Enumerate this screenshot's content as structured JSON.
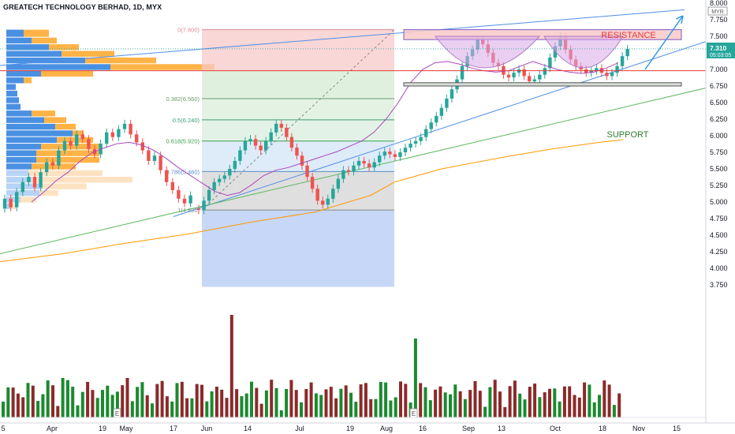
{
  "header": {
    "title": "GREATECH TECHNOLOGY BERHAD, 1D, MYX",
    "currency": "MYR"
  },
  "price_tag": {
    "price": "7.310",
    "countdown": "05:03:05"
  },
  "annotations": {
    "resistance": "RESISTANCE",
    "support": "SUPPORT"
  },
  "fib_levels": [
    {
      "ratio": "0",
      "price": 7.6,
      "label": "0(7.600)"
    },
    {
      "ratio": "0.382",
      "price": 6.56,
      "label": "0.382(6.560)"
    },
    {
      "ratio": "0.5",
      "price": 6.24,
      "label": "0.5(6.240)"
    },
    {
      "ratio": "0.618",
      "price": 5.92,
      "label": "0.618(5.920)"
    },
    {
      "ratio": "0.786",
      "price": 5.46,
      "label": "0.786(5.460)"
    },
    {
      "ratio": "1",
      "price": 4.88,
      "label": "1(4.880)"
    }
  ],
  "colors": {
    "up": "#26a69a",
    "down": "#ef5350",
    "vol_up": "#1b8a2f",
    "vol_down": "#8b2a2a",
    "ma_short": "#ab47bc",
    "ma_long": "#ff9800",
    "trend_blue": "#2962ff",
    "trend_green": "#4caf50",
    "resistance": "#e53935",
    "support": "#2e7d32"
  },
  "chart_data": {
    "type": "candlestick",
    "symbol": "GREATECH TECHNOLOGY BERHAD",
    "interval": "1D",
    "exchange": "MYX",
    "y_axis": {
      "ticks": [
        "8.000",
        "7.750",
        "7.500",
        "7.250",
        "7.000",
        "6.750",
        "6.500",
        "6.250",
        "6.000",
        "5.750",
        "5.500",
        "5.250",
        "5.000",
        "4.750",
        "4.500",
        "4.250",
        "4.000",
        "3.750"
      ],
      "range": [
        3.72,
        8.02
      ]
    },
    "x_axis": {
      "ticks": [
        "5",
        "Apr",
        "19",
        "May",
        "17",
        "Jun",
        "14",
        "Jul",
        "19",
        "Aug",
        "16",
        "Sep",
        "13",
        "Oct",
        "18",
        "Nov",
        "15"
      ],
      "events": [
        "E",
        "E",
        "E"
      ]
    },
    "price_close_approx": [
      4.88,
      5.02,
      5.18,
      5.3,
      5.35,
      5.4,
      5.5,
      5.62,
      5.78,
      5.92,
      5.95,
      5.85,
      5.78,
      5.92,
      6.05,
      6.18,
      6.12,
      5.98,
      5.82,
      5.7,
      5.55,
      5.38,
      5.2,
      5.02,
      4.96,
      5.05,
      5.2,
      5.35,
      5.48,
      5.46,
      5.55,
      5.62,
      5.58,
      5.52,
      5.6,
      5.7,
      5.76,
      5.72,
      5.68,
      5.75,
      5.82,
      5.88,
      5.92,
      5.98,
      6.1,
      6.2,
      6.3,
      6.42,
      6.56,
      6.7,
      6.85,
      7.05,
      7.2,
      7.3,
      7.45,
      7.38,
      7.25,
      7.1,
      7.05,
      6.92,
      6.88,
      6.95,
      7.0,
      6.9,
      6.82,
      6.85,
      6.92,
      7.02,
      7.18,
      7.35,
      7.5,
      7.3,
      7.15,
      7.05,
      7.0,
      6.95,
      6.98,
      7.02,
      6.95,
      6.9,
      6.95,
      7.05,
      7.2,
      7.31
    ],
    "current_price": 7.31,
    "fibonacci": [
      {
        "ratio": 0,
        "price": 7.6
      },
      {
        "ratio": 0.382,
        "price": 6.56
      },
      {
        "ratio": 0.5,
        "price": 6.24
      },
      {
        "ratio": 0.618,
        "price": 5.92
      },
      {
        "ratio": 0.786,
        "price": 5.46
      },
      {
        "ratio": 1,
        "price": 4.88
      }
    ],
    "zones": {
      "resistance": [
        7.45,
        7.6
      ],
      "support": [
        6.75,
        6.8
      ]
    },
    "indicators": [
      "moving average (short)",
      "moving average (long)",
      "volume",
      "volume profile"
    ]
  }
}
